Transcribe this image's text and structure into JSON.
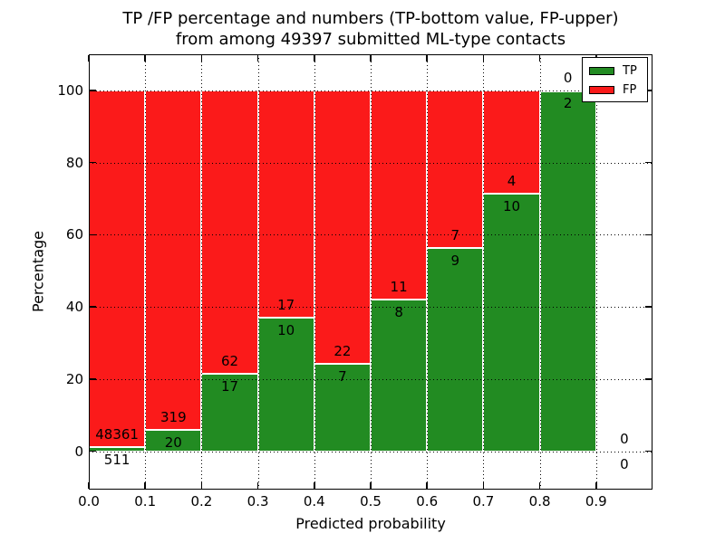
{
  "figure": {
    "title_line1": "TP /FP percentage and numbers (TP-bottom value, FP-upper)",
    "title_line2": "from among 49397 submitted ML-type contacts"
  },
  "chart_data": {
    "type": "bar",
    "subtype": "stacked-percentage-histogram",
    "title": "TP /FP percentage and numbers (TP-bottom value, FP-upper) from among 49397 submitted ML-type contacts",
    "xlabel": "Predicted probability",
    "ylabel": "Percentage",
    "total_contacts": 49397,
    "bin_start": [
      0.0,
      0.1,
      0.2,
      0.3,
      0.4,
      0.5,
      0.6,
      0.7,
      0.8,
      0.9
    ],
    "bin_width": 0.1,
    "series": [
      {
        "name": "TP",
        "color": "#228b22",
        "counts": [
          511,
          20,
          17,
          10,
          7,
          8,
          9,
          10,
          2,
          0
        ]
      },
      {
        "name": "FP",
        "color": "#fb1a1a",
        "counts": [
          48361,
          319,
          62,
          17,
          22,
          11,
          7,
          4,
          0,
          0
        ]
      }
    ],
    "tp_percent_of_bin": [
      1.05,
      5.9,
      21.5,
      37.0,
      24.1,
      42.1,
      56.3,
      71.4,
      100.0,
      null
    ],
    "xticks": [
      "0.0",
      "0.1",
      "0.2",
      "0.3",
      "0.4",
      "0.5",
      "0.6",
      "0.7",
      "0.8",
      "0.9"
    ],
    "yticks": [
      "0",
      "20",
      "40",
      "60",
      "80",
      "100"
    ],
    "ytick_values": [
      0,
      20,
      40,
      60,
      80,
      100
    ],
    "xlim": [
      0.0,
      1.0
    ],
    "ylim": [
      -10.65,
      110.0
    ],
    "grid": "dotted",
    "legend": {
      "position": "upper-right",
      "entries": [
        {
          "label": "TP",
          "color": "#228b22"
        },
        {
          "label": "FP",
          "color": "#fb1a1a"
        }
      ]
    }
  }
}
